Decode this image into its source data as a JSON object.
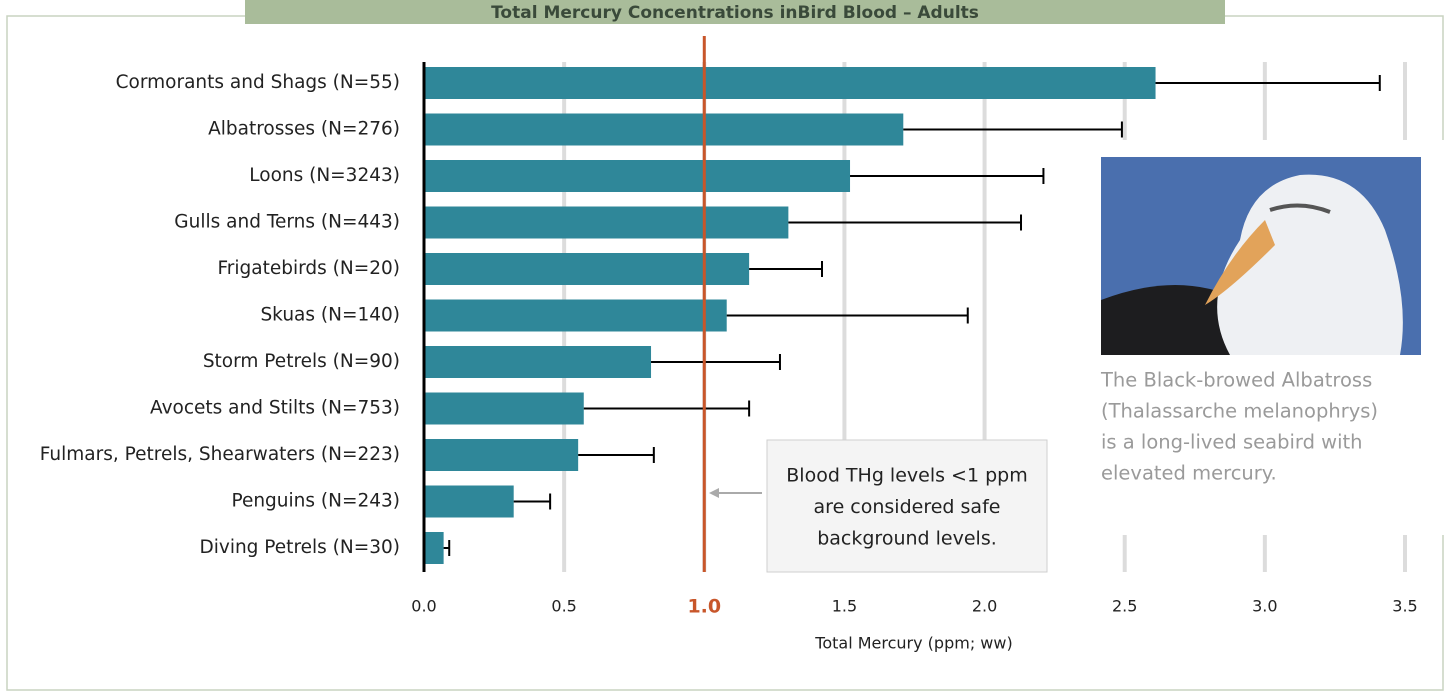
{
  "chart_data": {
    "type": "bar",
    "orientation": "horizontal",
    "title": "Total Mercury Concentrations inBird Blood – Adults",
    "x_label": "Total Mercury (ppm; ww)",
    "categories": [
      "Cormorants and Shags (N=55)",
      "Albatrosses (N=276)",
      "Loons (N=3243)",
      "Gulls and Terns (N=443)",
      "Frigatebirds (N=20)",
      "Skuas (N=140)",
      "Storm Petrels (N=90)",
      "Avocets and Stilts (N=753)",
      "Fulmars, Petrels, Shearwaters (N=223)",
      "Penguins (N=243)",
      "Diving Petrels (N=30)"
    ],
    "values": [
      2.61,
      1.71,
      1.52,
      1.3,
      1.16,
      1.08,
      0.81,
      0.57,
      0.55,
      0.32,
      0.07
    ],
    "errors": [
      0.8,
      0.78,
      0.69,
      0.83,
      0.26,
      0.86,
      0.46,
      0.59,
      0.27,
      0.13,
      0.02
    ],
    "color": "#2f8799",
    "xlim": [
      0,
      3.5
    ],
    "xticks": [
      {
        "value": 0,
        "label": "0.0"
      },
      {
        "value": 0.5,
        "label": "0.5"
      },
      {
        "value": 1,
        "label": "1.0"
      },
      {
        "value": 1.5,
        "label": "1.5"
      },
      {
        "value": 2,
        "label": "2.0"
      },
      {
        "value": 2.5,
        "label": "2.5"
      },
      {
        "value": 3,
        "label": "3.0"
      },
      {
        "value": 3.5,
        "label": "3.5"
      }
    ],
    "grid": true,
    "reference_line": 1,
    "reference_color": "#c8562a",
    "annotation": [
      "Blood THg levels <1 ppm",
      "are considered safe",
      "background levels."
    ],
    "photo_caption": [
      "The Black-browed Albatross",
      "(Thalassarche melanophrys)",
      "is a long-lived seabird with",
      "elevated mercury."
    ]
  }
}
